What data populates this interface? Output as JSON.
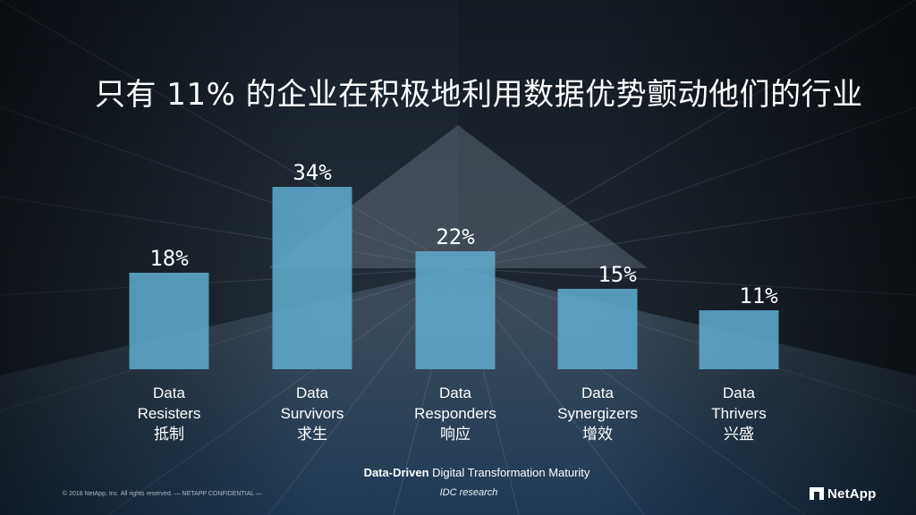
{
  "slide": {
    "title": "只有 11% 的企业在积极地利用数据优势颤动他们的行业",
    "caption_bold": "Data-Driven",
    "caption_rest": " Digital Transformation Maturity",
    "source": "IDC research",
    "copyright": "© 2018 NetApp, Inc. All rights reserved.  — NETAPP CONFIDENTIAL —",
    "logo_text": "NetApp"
  },
  "colors": {
    "bar": "#5fa8cc",
    "label": "#ffffff"
  },
  "chart_data": {
    "type": "bar",
    "unit": "%",
    "categories": [
      {
        "line1": "Data",
        "line2": "Resisters",
        "line3": "抵制"
      },
      {
        "line1": "Data",
        "line2": "Survivors",
        "line3": "求生"
      },
      {
        "line1": "Data",
        "line2": "Responders",
        "line3": "响应"
      },
      {
        "line1": "Data",
        "line2": "Synergizers",
        "line3": "增效"
      },
      {
        "line1": "Data",
        "line2": "Thrivers",
        "line3": "兴盛"
      }
    ],
    "values": [
      18,
      34,
      22,
      15,
      11
    ],
    "value_labels": [
      "18%",
      "34%",
      "22%",
      "15%",
      "11%"
    ],
    "ylim": [
      0,
      40
    ],
    "grid": false,
    "legend": "none"
  }
}
